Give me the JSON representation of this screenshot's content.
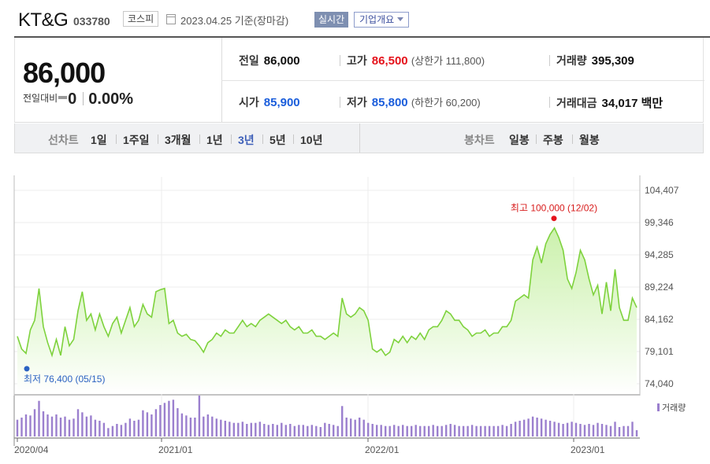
{
  "header": {
    "name": "KT&G",
    "code": "033780",
    "market": "코스피",
    "date": "2023.04.25",
    "date_suffix": "기준(장마감)",
    "realtime_label": "실시간",
    "overview_label": "기업개요"
  },
  "summary": {
    "price": "86,000",
    "change_label": "전일대비",
    "change_value": "0",
    "change_rate": "0.00%"
  },
  "stats": {
    "prev_close": {
      "label": "전일",
      "value": "86,000"
    },
    "high": {
      "label": "고가",
      "value": "86,500",
      "limit": "(상한가 111,800)"
    },
    "volume": {
      "label": "거래량",
      "value": "395,309"
    },
    "open": {
      "label": "시가",
      "value": "85,900"
    },
    "low": {
      "label": "저가",
      "value": "85,800",
      "limit": "(하한가 60,200)"
    },
    "amount": {
      "label": "거래대금",
      "value": "34,017 백만"
    }
  },
  "toolbar": {
    "line_chart_label": "선차트",
    "periods": [
      "1일",
      "1주일",
      "3개월",
      "1년",
      "3년",
      "5년",
      "10년"
    ],
    "selected_period": "3년",
    "candle_chart_label": "봉차트",
    "candles": [
      "일봉",
      "주봉",
      "월봉"
    ]
  },
  "colors": {
    "line": "#7ed23d",
    "fill_top": "#c6f0a4",
    "volume_bar": "#9b7fce",
    "high_marker": "#e5121b",
    "low_marker": "#2b62c2",
    "selected_period": "#3d5fb8"
  },
  "chart_data": {
    "type": "area",
    "title": "",
    "xlabel": "",
    "ylabel": "",
    "yticks": [
      "104,407",
      "99,346",
      "94,285",
      "89,224",
      "84,162",
      "79,101",
      "74,040"
    ],
    "ylim": [
      74040,
      104407
    ],
    "xticks": [
      "2020/04",
      "2021/01",
      "2022/01",
      "2023/01"
    ],
    "high_annotation": "최고 100,000 (12/02)",
    "low_annotation": "최저 76,400 (05/15)",
    "volume_legend": "거래량",
    "start": "2020/04",
    "end": "2023/04",
    "series": [
      {
        "values": [
          81500,
          79500,
          78800,
          82500,
          84000,
          89000,
          83000,
          80500,
          78500,
          81000,
          78500,
          83000,
          80000,
          81000,
          85500,
          88500,
          84000,
          85000,
          82500,
          85000,
          83000,
          81500,
          83500,
          84500,
          82000,
          84000,
          86000,
          83000,
          84000,
          86500,
          85000,
          84500,
          88500,
          88800,
          89000,
          83500,
          84000,
          82000,
          81500,
          81800,
          81000,
          80800,
          80000,
          79000,
          80500,
          81000,
          82000,
          81500,
          82500,
          82000,
          82000,
          83000,
          84000,
          83000,
          83500,
          83000,
          84000,
          84500,
          85000,
          84500,
          84000,
          83500,
          84000,
          83000,
          82500,
          83000,
          82000,
          82000,
          82500,
          81500,
          81500,
          81000,
          81500,
          82000,
          81500,
          87500,
          85000,
          84500,
          85000,
          86000,
          85500,
          84000,
          79500,
          79000,
          79500,
          78500,
          79000,
          81000,
          80500,
          81500,
          80500,
          81500,
          81000,
          82000,
          81000,
          82500,
          83000,
          83000,
          84000,
          85500,
          85000,
          84000,
          84000,
          83000,
          82500,
          81500,
          82000,
          82000,
          82500,
          81500,
          82000,
          82000,
          83000,
          83000,
          84000,
          87000,
          87500,
          88000,
          87500,
          93500,
          95500,
          93000,
          96000,
          97500,
          98500,
          97000,
          95000,
          90500,
          89000,
          91500,
          95000,
          93500,
          90500,
          88000,
          89500,
          85000,
          90000,
          85500,
          92000,
          86000,
          84000,
          84000,
          87500,
          86000
        ],
        "volume": [
          1.6,
          1.8,
          2.1,
          2.0,
          2.6,
          3.4,
          2.4,
          2.1,
          1.9,
          2.1,
          1.8,
          1.9,
          1.6,
          1.7,
          2.6,
          2.3,
          1.9,
          2.0,
          1.6,
          1.5,
          1.3,
          0.8,
          1.0,
          1.2,
          1.1,
          1.3,
          1.7,
          1.5,
          1.6,
          2.5,
          2.3,
          2.1,
          2.6,
          3.0,
          3.2,
          3.4,
          3.5,
          2.7,
          2.2,
          2.0,
          1.8,
          1.8,
          3.9,
          1.9,
          2.1,
          1.9,
          1.7,
          1.6,
          1.5,
          1.4,
          1.3,
          1.3,
          1.4,
          1.2,
          1.3,
          1.3,
          1.4,
          1.2,
          1.1,
          1.2,
          1.1,
          1.3,
          1.1,
          1.2,
          1.0,
          1.1,
          1.1,
          1.0,
          1.1,
          1.0,
          0.9,
          1.3,
          1.2,
          1.1,
          1.0,
          2.9,
          1.8,
          1.7,
          1.6,
          1.8,
          1.6,
          1.3,
          1.2,
          1.1,
          1.1,
          1.0,
          1.0,
          1.1,
          1.0,
          1.1,
          1.0,
          1.0,
          1.1,
          1.0,
          1.0,
          1.0,
          1.1,
          1.0,
          1.0,
          1.1,
          1.2,
          1.1,
          1.0,
          1.0,
          1.0,
          1.1,
          1.0,
          1.0,
          1.0,
          1.0,
          1.0,
          1.0,
          1.1,
          1.0,
          1.2,
          1.4,
          1.5,
          1.6,
          1.7,
          1.9,
          1.8,
          1.7,
          1.6,
          1.5,
          1.4,
          1.3,
          1.2,
          1.3,
          1.4,
          1.3,
          1.2,
          1.1,
          1.2,
          1.1,
          1.3,
          1.2,
          1.1,
          1.0,
          1.4,
          0.9,
          1.0,
          1.0,
          1.4,
          0.6
        ]
      }
    ]
  }
}
